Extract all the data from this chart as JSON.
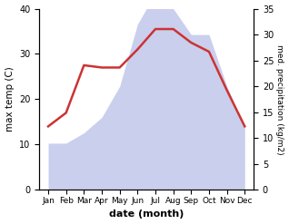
{
  "months": [
    "Jan",
    "Feb",
    "Mar",
    "Apr",
    "May",
    "Jun",
    "Jul",
    "Aug",
    "Sep",
    "Oct",
    "Nov",
    "Dec"
  ],
  "month_indices": [
    0,
    1,
    2,
    3,
    4,
    5,
    6,
    7,
    8,
    9,
    10,
    11
  ],
  "temperature": [
    14,
    17,
    27.5,
    27,
    27,
    31,
    35.5,
    35.5,
    32.5,
    30.5,
    22,
    14
  ],
  "precipitation": [
    9,
    9,
    11,
    14,
    20,
    32,
    38,
    35,
    30,
    30,
    20,
    12
  ],
  "temp_color": "#cc3333",
  "precip_fill_color": "#b8c0e8",
  "precip_fill_alpha": 0.75,
  "temp_ylim": [
    0,
    40
  ],
  "precip_ylim": [
    0,
    35
  ],
  "temp_yticks": [
    0,
    10,
    20,
    30,
    40
  ],
  "precip_yticks": [
    0,
    5,
    10,
    15,
    20,
    25,
    30,
    35
  ],
  "xlabel": "date (month)",
  "ylabel_left": "max temp (C)",
  "ylabel_right": "med. precipitation (kg/m2)",
  "background_color": "#ffffff",
  "line_width": 1.8,
  "figsize": [
    3.18,
    2.47
  ],
  "dpi": 100
}
